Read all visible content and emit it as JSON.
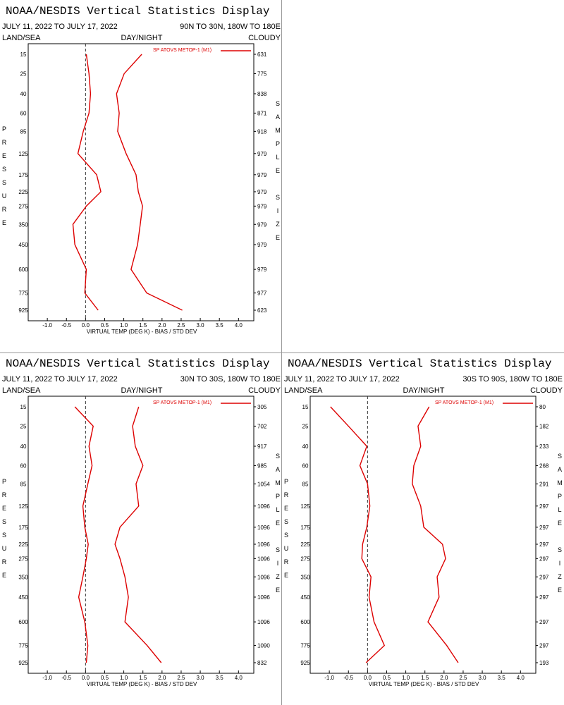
{
  "chart_data": [
    {
      "type": "line",
      "title": "NOAA/NESDIS Vertical Statistics Display",
      "subtitle": "JULY 11, 2022 TO JULY 17, 2022",
      "region": "90N TO 30N, 180W TO 180E",
      "land_sea": "LAND/SEA",
      "day_night": "DAY/NIGHT",
      "cloudy": "CLOUDY",
      "y_label": "PRESSURE",
      "right_label": "SAMPLE SIZE",
      "x_label": "VIRTUAL TEMP (DEG K) - BIAS / STD DEV",
      "legend": "SP ATOVS METOP-1 (M1)",
      "categories": [
        15,
        25,
        40,
        60,
        85,
        125,
        175,
        225,
        275,
        350,
        450,
        600,
        775,
        925
      ],
      "sample_size": [
        631,
        775,
        838,
        871,
        918,
        979,
        979,
        979,
        979,
        979,
        979,
        979,
        977,
        623
      ],
      "series": [
        {
          "color": "#dd0000",
          "values": [
            0.02,
            0.09,
            0.13,
            0.09,
            -0.06,
            -0.2,
            0.29,
            0.4,
            0.02,
            -0.33,
            -0.28,
            0.02,
            -0.02,
            0.33
          ]
        },
        {
          "color": "#dd0000",
          "values": [
            1.47,
            1.01,
            0.81,
            0.88,
            0.84,
            1.06,
            1.32,
            1.38,
            1.49,
            1.43,
            1.36,
            1.19,
            1.6,
            2.53
          ]
        }
      ],
      "xlim": [
        -1.5,
        4.4
      ],
      "xticks": [
        {
          "value": -1,
          "label": "-1.0"
        },
        -0.5,
        {
          "value": 0,
          "label": "0.0"
        },
        0.5,
        {
          "value": 1,
          "label": "1.0"
        },
        1.5,
        {
          "value": 2,
          "label": "2.0"
        },
        2.5,
        {
          "value": 3,
          "label": "3.0"
        },
        3.5,
        {
          "value": 4,
          "label": "4.0"
        }
      ]
    },
    {
      "type": "line",
      "title": "NOAA/NESDIS Vertical Statistics Display",
      "subtitle": "JULY 11, 2022 TO JULY 17, 2022",
      "region": "30N TO 30S, 180W TO 180E",
      "land_sea": "LAND/SEA",
      "day_night": "DAY/NIGHT",
      "cloudy": "CLOUDY",
      "y_label": "PRESSURE",
      "right_label": "SAMPLE SIZE",
      "x_label": "VIRTUAL TEMP (DEG K) - BIAS / STD DEV",
      "legend": "SP ATOVS METOP-1 (M1)",
      "categories": [
        15,
        25,
        40,
        60,
        85,
        125,
        175,
        225,
        275,
        350,
        450,
        600,
        775,
        925
      ],
      "sample_size": [
        305,
        702,
        917,
        985,
        1054,
        1096,
        1096,
        1096,
        1096,
        1096,
        1096,
        1096,
        1090,
        832
      ],
      "series": [
        {
          "color": "#dd0000",
          "values": [
            -0.28,
            0.2,
            0.09,
            0.17,
            0.06,
            -0.07,
            -0.02,
            0.07,
            0.02,
            -0.07,
            -0.18,
            -0.02,
            0.06,
            0.02
          ]
        },
        {
          "color": "#dd0000",
          "values": [
            1.39,
            1.23,
            1.3,
            1.5,
            1.32,
            1.39,
            0.9,
            0.77,
            0.9,
            1.03,
            1.12,
            1.03,
            1.61,
            1.98
          ]
        }
      ],
      "xlim": [
        -1.5,
        4.4
      ],
      "xticks": [
        {
          "value": -1,
          "label": "-1.0"
        },
        -0.5,
        {
          "value": 0,
          "label": "0.0"
        },
        0.5,
        {
          "value": 1,
          "label": "1.0"
        },
        1.5,
        {
          "value": 2,
          "label": "2.0"
        },
        2.5,
        {
          "value": 3,
          "label": "3.0"
        },
        3.5,
        {
          "value": 4,
          "label": "4.0"
        }
      ]
    },
    {
      "type": "line",
      "title": "NOAA/NESDIS Vertical Statistics Display",
      "subtitle": "JULY 11, 2022 TO JULY 17, 2022",
      "region": "30S TO 90S, 180W TO 180E",
      "land_sea": "LAND/SEA",
      "day_night": "DAY/NIGHT",
      "cloudy": "CLOUDY",
      "y_label": "PRESSURE",
      "right_label": "SAMPLE SIZE",
      "x_label": "VIRTUAL TEMP (DEG K) - BIAS / STD DEV",
      "legend": "SP ATOVS METOP-1 (M1)",
      "categories": [
        15,
        25,
        40,
        60,
        85,
        125,
        175,
        225,
        275,
        350,
        450,
        600,
        775,
        925
      ],
      "sample_size": [
        80,
        182,
        233,
        268,
        291,
        297,
        297,
        297,
        297,
        297,
        297,
        297,
        297,
        193
      ],
      "series": [
        {
          "color": "#dd0000",
          "values": [
            -0.97,
            -0.5,
            -0.02,
            -0.2,
            0,
            0.06,
            -0.02,
            -0.13,
            -0.15,
            0.09,
            0.04,
            0.17,
            0.44,
            -0.04
          ]
        },
        {
          "color": "#dd0000",
          "values": [
            1.61,
            1.32,
            1.39,
            1.21,
            1.17,
            1.39,
            1.47,
            1.96,
            2.04,
            1.82,
            1.87,
            1.58,
            2.07,
            2.37
          ]
        }
      ],
      "xlim": [
        -1.5,
        4.4
      ],
      "xticks": [
        {
          "value": -1,
          "label": "-1.0"
        },
        -0.5,
        {
          "value": 0,
          "label": "0.0"
        },
        0.5,
        {
          "value": 1,
          "label": "1.0"
        },
        1.5,
        {
          "value": 2,
          "label": "2.0"
        },
        2.5,
        {
          "value": 3,
          "label": "3.0"
        },
        3.5,
        {
          "value": 4,
          "label": "4.0"
        }
      ]
    }
  ]
}
